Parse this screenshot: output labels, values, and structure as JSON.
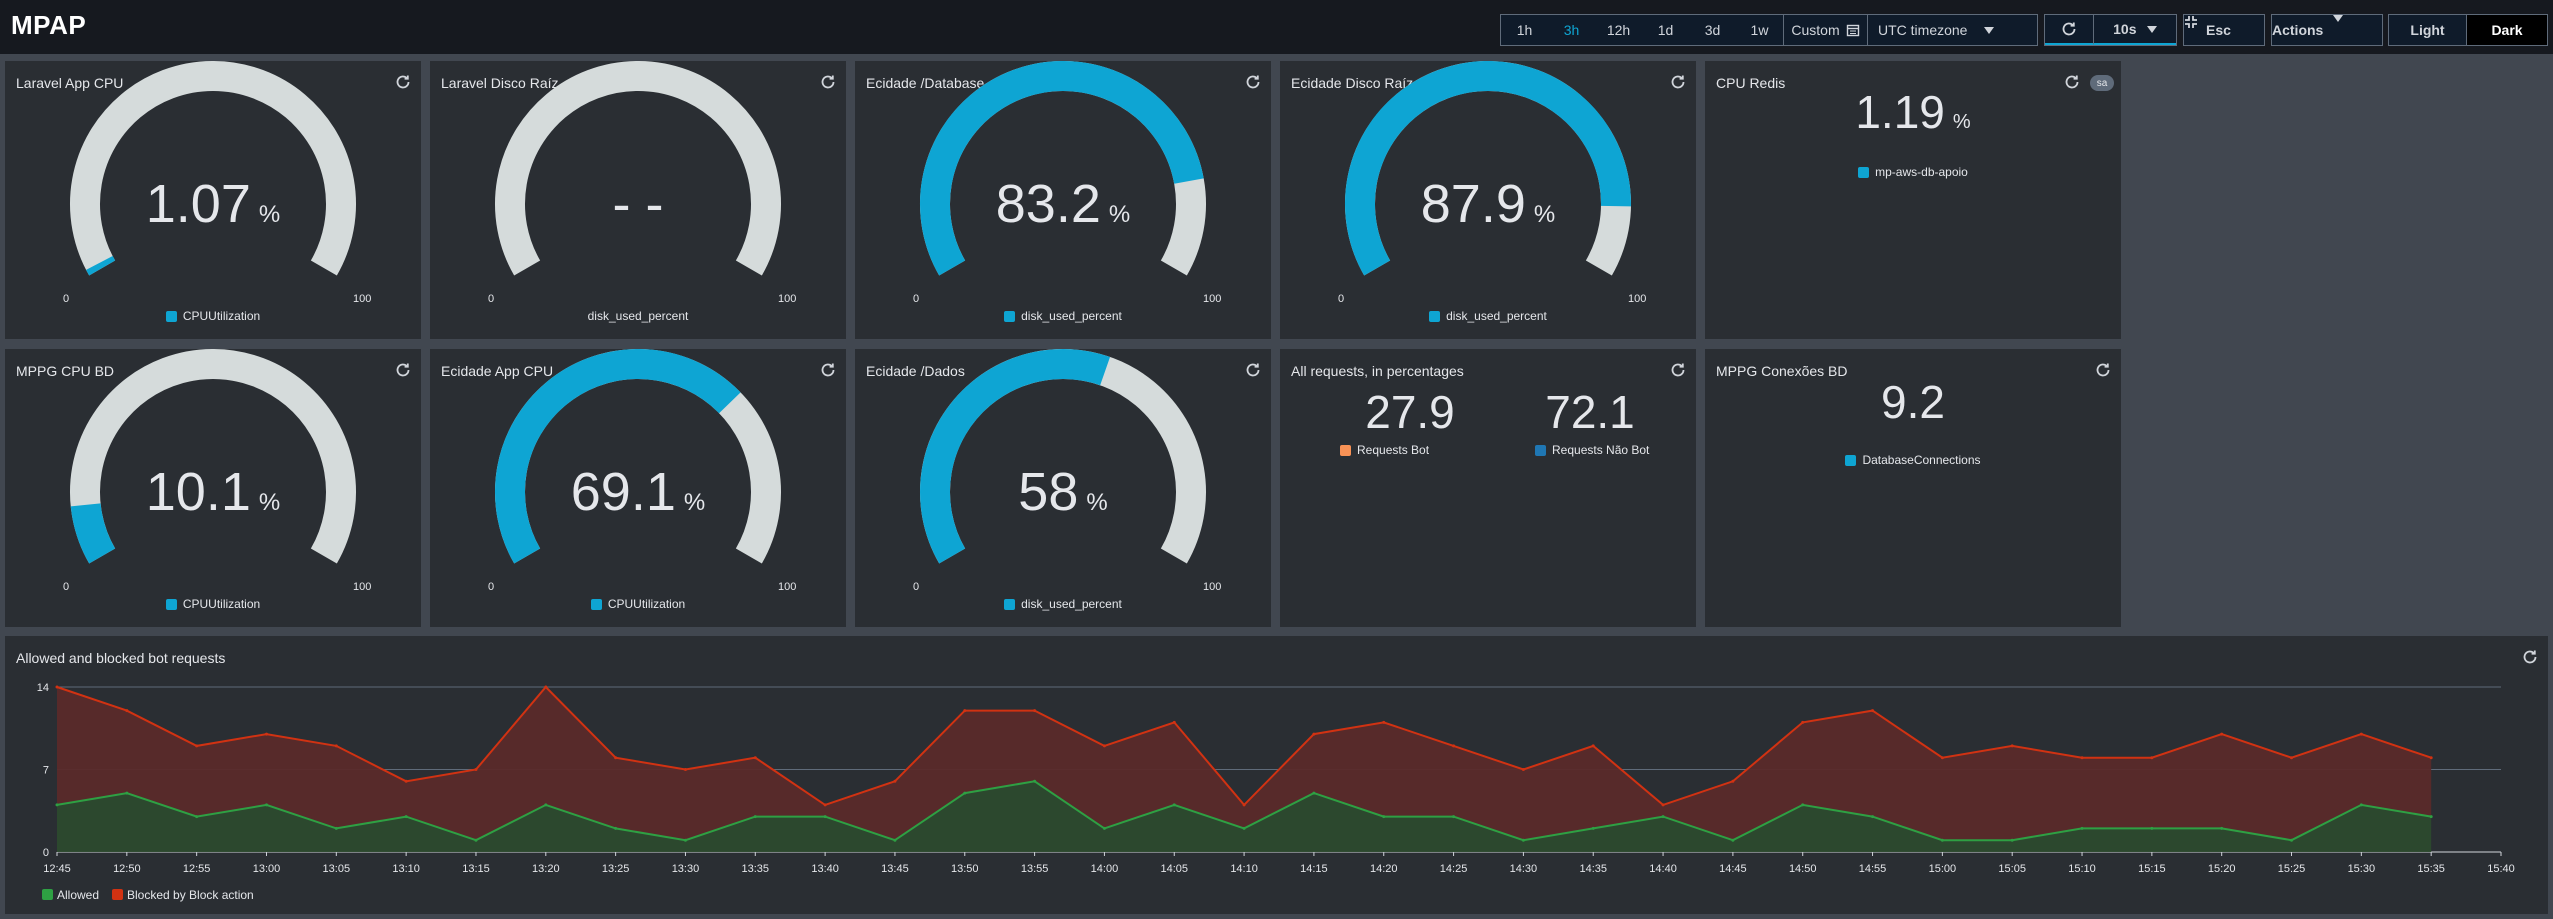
{
  "header": {
    "title": "MPAP",
    "ranges": [
      "1h",
      "3h",
      "12h",
      "1d",
      "3d",
      "1w"
    ],
    "active_range": "3h",
    "custom_label": "Custom",
    "timezone": "UTC timezone",
    "refresh_interval": "10s",
    "esc_label": "Esc",
    "actions_label": "Actions",
    "theme_light": "Light",
    "theme_dark": "Dark",
    "active_theme": "Dark"
  },
  "colors": {
    "accent": "#0ea5d3",
    "gauge_bg": "#d5dbdb",
    "allowed_line": "#2ea043",
    "blocked_line": "#d13212",
    "bot_orange": "#f89256",
    "panel_bg": "#2a2e33"
  },
  "gauges": [
    {
      "title": "Laravel App CPU",
      "value": "1.07",
      "fraction": 0.0107,
      "unit": "%",
      "min": "0",
      "max": "100",
      "legend": "CPUUtilization"
    },
    {
      "title": "Laravel Disco Raíz",
      "value": "- -",
      "fraction": 0,
      "unit": "",
      "min": "0",
      "max": "100",
      "legend": "disk_used_percent"
    },
    {
      "title": "Ecidade /Database",
      "value": "83.2",
      "fraction": 0.832,
      "unit": "%",
      "min": "0",
      "max": "100",
      "legend": "disk_used_percent"
    },
    {
      "title": "Ecidade Disco Raíz",
      "value": "87.9",
      "fraction": 0.879,
      "unit": "%",
      "min": "0",
      "max": "100",
      "legend": "disk_used_percent"
    },
    {
      "title": "MPPG CPU BD",
      "value": "10.1",
      "fraction": 0.101,
      "unit": "%",
      "min": "0",
      "max": "100",
      "legend": "CPUUtilization"
    },
    {
      "title": "Ecidade App CPU",
      "value": "69.1",
      "fraction": 0.691,
      "unit": "%",
      "min": "0",
      "max": "100",
      "legend": "CPUUtilization"
    },
    {
      "title": "Ecidade /Dados",
      "value": "58",
      "fraction": 0.58,
      "unit": "%",
      "min": "0",
      "max": "100",
      "legend": "disk_used_percent"
    }
  ],
  "cpu_redis": {
    "title": "CPU Redis",
    "value": "1.19",
    "unit": "%",
    "legend": "mp-aws-db-apoio",
    "badge": "sa"
  },
  "requests": {
    "title": "All requests, in percentages",
    "bot_value": "27.9",
    "bot_label": "Requests Bot",
    "notbot_value": "72.1",
    "notbot_label": "Requests Não Bot"
  },
  "connections": {
    "title": "MPPG Conexões BD",
    "value": "9.2",
    "legend": "DatabaseConnections"
  },
  "chart_data": {
    "type": "area",
    "title": "Allowed and blocked bot requests",
    "x": [
      "12:45",
      "12:50",
      "12:55",
      "13:00",
      "13:05",
      "13:10",
      "13:15",
      "13:20",
      "13:25",
      "13:30",
      "13:35",
      "13:40",
      "13:45",
      "13:50",
      "13:55",
      "14:00",
      "14:05",
      "14:10",
      "14:15",
      "14:20",
      "14:25",
      "14:30",
      "14:35",
      "14:40",
      "14:45",
      "14:50",
      "14:55",
      "15:00",
      "15:05",
      "15:10",
      "15:15",
      "15:20",
      "15:25",
      "15:30",
      "15:35",
      "15:40"
    ],
    "series": [
      {
        "name": "Allowed",
        "values": [
          4,
          5,
          3,
          4,
          2,
          3,
          1,
          4,
          2,
          1,
          3,
          3,
          1,
          5,
          6,
          2,
          4,
          2,
          5,
          3,
          3,
          1,
          2,
          3,
          1,
          4,
          3,
          1,
          1,
          2,
          2,
          2,
          1,
          4,
          3,
          null
        ]
      },
      {
        "name": "Blocked by Block action",
        "values": [
          10,
          7,
          6,
          6,
          7,
          3,
          6,
          10,
          6,
          6,
          5,
          1,
          5,
          7,
          6,
          7,
          7,
          2,
          5,
          8,
          6,
          6,
          7,
          1,
          5,
          7,
          9,
          7,
          8,
          6,
          6,
          8,
          7,
          6,
          5,
          null
        ]
      }
    ],
    "stacked": true,
    "ylim": [
      0,
      14
    ],
    "yticks": [
      "0",
      "7",
      "14"
    ],
    "grid": true,
    "legend_position": "bottom-left"
  }
}
